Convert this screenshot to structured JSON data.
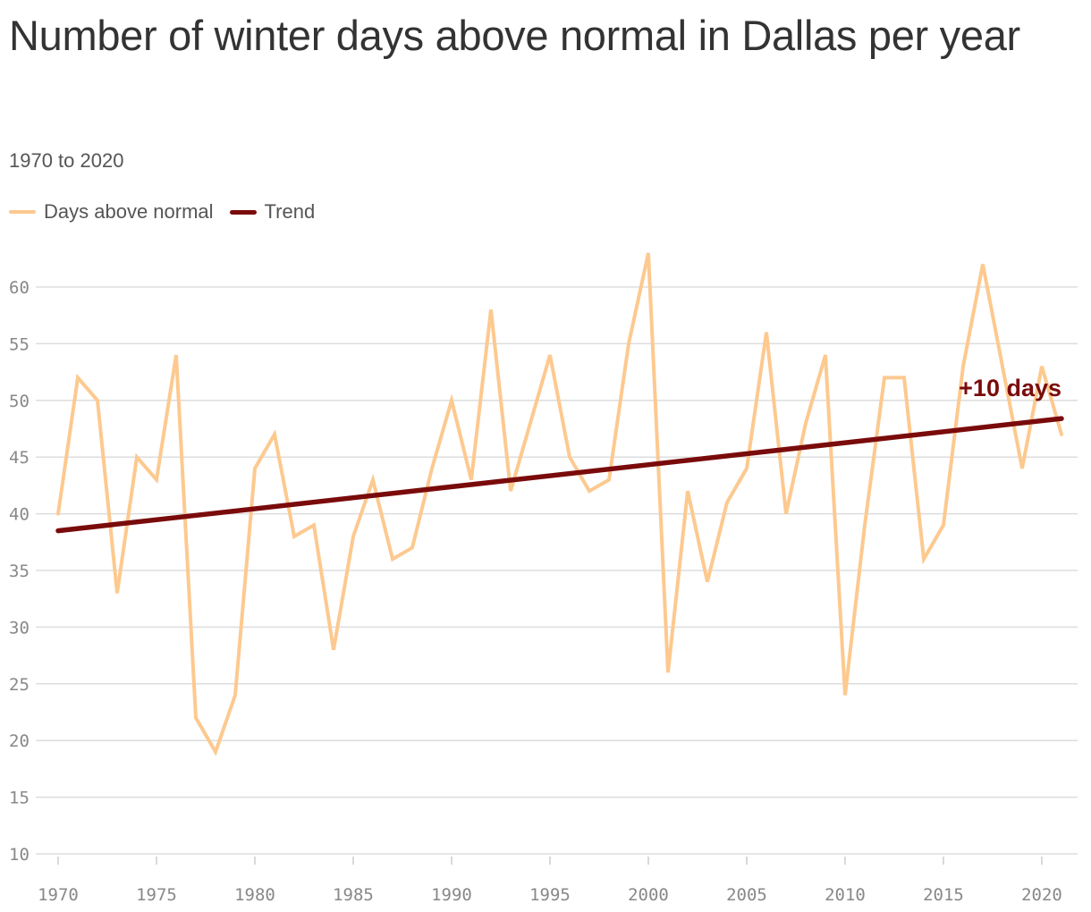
{
  "title": "Number of winter days above normal in Dallas per year",
  "subtitle": "1970 to 2020",
  "legend": [
    {
      "label": "Days above normal",
      "color": "#fdc98f"
    },
    {
      "label": "Trend",
      "color": "#7a0b0b"
    }
  ],
  "chart_data": {
    "type": "line",
    "title": "Number of winter days above normal in Dallas per year",
    "subtitle": "1970 to 2020",
    "xlabel": "",
    "ylabel": "",
    "xlim": [
      1970,
      2021
    ],
    "ylim": [
      10,
      63
    ],
    "x_ticks": [
      1970,
      1975,
      1980,
      1985,
      1990,
      1995,
      2000,
      2005,
      2010,
      2015,
      2020
    ],
    "y_ticks": [
      10,
      15,
      20,
      25,
      30,
      35,
      40,
      45,
      50,
      55,
      60
    ],
    "grid": true,
    "legend_position": "top-left",
    "series": [
      {
        "name": "Days above normal",
        "color": "#fdc98f",
        "points": [
          [
            1970,
            40
          ],
          [
            1971,
            52
          ],
          [
            1972,
            50
          ],
          [
            1973,
            33
          ],
          [
            1974,
            45
          ],
          [
            1975,
            43
          ],
          [
            1976,
            54
          ],
          [
            1977,
            22
          ],
          [
            1978,
            19
          ],
          [
            1979,
            24
          ],
          [
            1980,
            44
          ],
          [
            1981,
            47
          ],
          [
            1982,
            38
          ],
          [
            1983,
            39
          ],
          [
            1984,
            28
          ],
          [
            1985,
            38
          ],
          [
            1986,
            43
          ],
          [
            1987,
            36
          ],
          [
            1988,
            37
          ],
          [
            1989,
            44
          ],
          [
            1990,
            50
          ],
          [
            1991,
            43
          ],
          [
            1992,
            58
          ],
          [
            1993,
            42
          ],
          [
            1994,
            48
          ],
          [
            1995,
            54
          ],
          [
            1996,
            45
          ],
          [
            1997,
            42
          ],
          [
            1998,
            43
          ],
          [
            1999,
            55
          ],
          [
            2000,
            63
          ],
          [
            2001,
            26
          ],
          [
            2002,
            42
          ],
          [
            2003,
            34
          ],
          [
            2004,
            41
          ],
          [
            2005,
            44
          ],
          [
            2006,
            56
          ],
          [
            2007,
            40
          ],
          [
            2008,
            48
          ],
          [
            2009,
            54
          ],
          [
            2010,
            24
          ],
          [
            2011,
            39
          ],
          [
            2012,
            52
          ],
          [
            2013,
            52
          ],
          [
            2014,
            36
          ],
          [
            2015,
            39
          ],
          [
            2016,
            53
          ],
          [
            2017,
            62
          ],
          [
            2018,
            53
          ],
          [
            2019,
            44
          ],
          [
            2020,
            53
          ],
          [
            2021,
            47
          ]
        ]
      },
      {
        "name": "Trend",
        "color": "#7a0b0b",
        "points": [
          [
            1970,
            38.5
          ],
          [
            2021,
            48.4
          ]
        ]
      }
    ],
    "annotations": [
      {
        "text": "+10 days",
        "x": 2021,
        "y": 51,
        "color": "#7a0b0b"
      }
    ]
  }
}
